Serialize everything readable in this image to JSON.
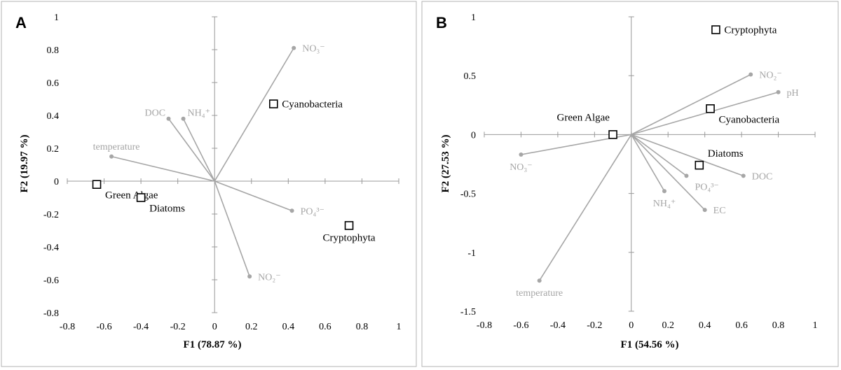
{
  "chart_data": [
    {
      "panel": "A",
      "type": "scatter",
      "subtype": "biplot",
      "xlabel": "F1 (78.87 %)",
      "ylabel": "F2 (19.97 %)",
      "xlim": [
        -0.8,
        1
      ],
      "ylim": [
        -0.8,
        1
      ],
      "xticks": [
        "-0.8",
        "-0.6",
        "-0.4",
        "-0.2",
        "0",
        "0.2",
        "0.4",
        "0.6",
        "0.8",
        "1"
      ],
      "yticks": [
        "-0.8",
        "-0.6",
        "-0.4",
        "-0.2",
        "0",
        "0.2",
        "0.4",
        "0.6",
        "0.8",
        "1"
      ],
      "variables": [
        {
          "label": "NO₃⁻",
          "x": 0.43,
          "y": 0.81,
          "anchor": "right"
        },
        {
          "label": "DOC",
          "x": -0.25,
          "y": 0.38,
          "anchor": "left-top"
        },
        {
          "label": "NH₄⁺",
          "x": -0.17,
          "y": 0.38,
          "anchor": "right-top"
        },
        {
          "label": "temperature",
          "x": -0.56,
          "y": 0.15,
          "anchor": "above"
        },
        {
          "label": "PO₄³⁻",
          "x": 0.42,
          "y": -0.18,
          "anchor": "right"
        },
        {
          "label": "NO₂⁻",
          "x": 0.19,
          "y": -0.58,
          "anchor": "right"
        }
      ],
      "observations": [
        {
          "label": "Cyanobacteria",
          "x": 0.32,
          "y": 0.47,
          "anchor": "right"
        },
        {
          "label": "Green Algae",
          "x": -0.64,
          "y": -0.02,
          "anchor": "below-right"
        },
        {
          "label": "Diatoms",
          "x": -0.4,
          "y": -0.1,
          "anchor": "below-right"
        },
        {
          "label": "Cryptophyta",
          "x": 0.73,
          "y": -0.27,
          "anchor": "below"
        }
      ]
    },
    {
      "panel": "B",
      "type": "scatter",
      "subtype": "biplot",
      "xlabel": "F1 (54.56 %)",
      "ylabel": "F2 (27.53 %)",
      "xlim": [
        -0.8,
        1
      ],
      "ylim": [
        -1.5,
        1
      ],
      "xticks": [
        "-0.8",
        "-0.6",
        "-0.4",
        "-0.2",
        "0",
        "0.2",
        "0.4",
        "0.6",
        "0.8",
        "1"
      ],
      "yticks": [
        "-1.5",
        "-1",
        "-0.5",
        "0",
        "0.5",
        "1"
      ],
      "variables": [
        {
          "label": "NO₂⁻",
          "x": 0.65,
          "y": 0.51,
          "anchor": "right"
        },
        {
          "label": "pH",
          "x": 0.8,
          "y": 0.36,
          "anchor": "right"
        },
        {
          "label": "NO₃⁻",
          "x": -0.6,
          "y": -0.17,
          "anchor": "below"
        },
        {
          "label": "PO₄³⁻",
          "x": 0.3,
          "y": -0.35,
          "anchor": "below-right"
        },
        {
          "label": "DOC",
          "x": 0.61,
          "y": -0.35,
          "anchor": "right"
        },
        {
          "label": "NH₄⁺",
          "x": 0.18,
          "y": -0.48,
          "anchor": "below"
        },
        {
          "label": "EC",
          "x": 0.4,
          "y": -0.64,
          "anchor": "right"
        },
        {
          "label": "temperature",
          "x": -0.5,
          "y": -1.24,
          "anchor": "below"
        }
      ],
      "observations": [
        {
          "label": "Cryptophyta",
          "x": 0.46,
          "y": 0.89,
          "anchor": "right"
        },
        {
          "label": "Green Algae",
          "x": -0.1,
          "y": 0.0,
          "anchor": "above-left"
        },
        {
          "label": "Cyanobacteria",
          "x": 0.43,
          "y": 0.22,
          "anchor": "below-right"
        },
        {
          "label": "Diatoms",
          "x": 0.37,
          "y": -0.26,
          "anchor": "above-right"
        }
      ]
    }
  ]
}
